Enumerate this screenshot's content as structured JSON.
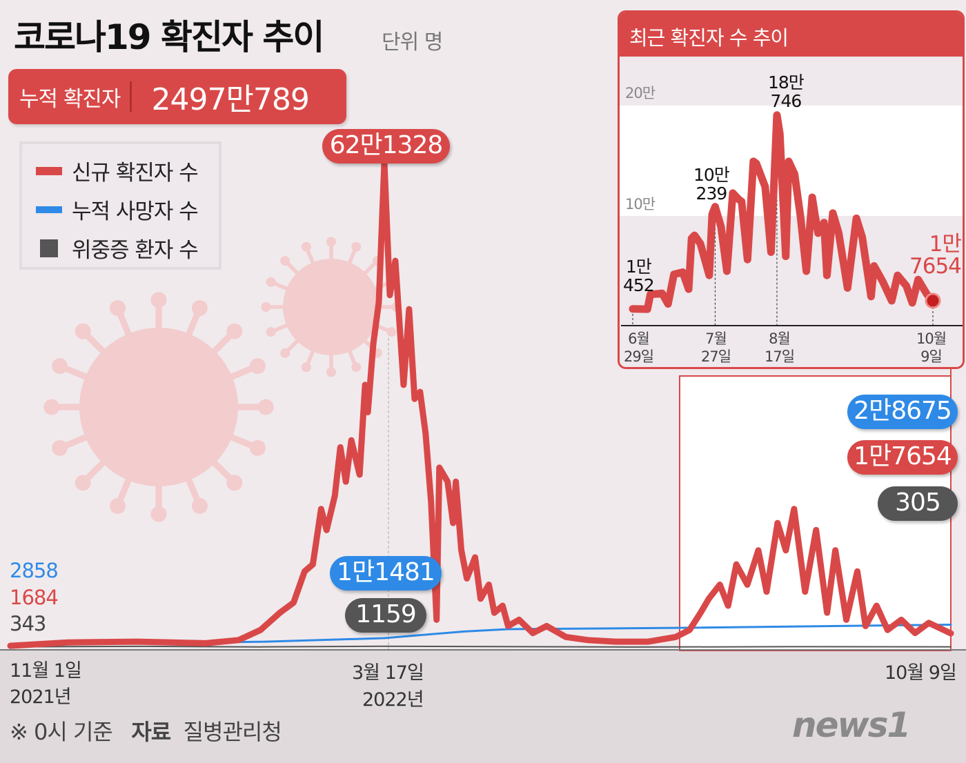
{
  "title": "코로나19 확진자 추이",
  "unit": "단위 명",
  "total": {
    "label": "누적 확진자",
    "value": "2497만789"
  },
  "legend": [
    {
      "label": "신규 확진자 수",
      "color": "#d94848"
    },
    {
      "label": "누적 사망자 수",
      "color": "#2e8ae6"
    },
    {
      "label": "위중증 환자 수",
      "color": "#555555"
    }
  ],
  "colors": {
    "new_cases": "#d94848",
    "deaths": "#2e8ae6",
    "critical": "#555555",
    "background": "#f0eaed"
  },
  "annotations": {
    "peak": "62만1328",
    "deaths_mid": "1만1481",
    "critical_mid": "1159",
    "start_deaths": "2858",
    "start_cases": "1684",
    "start_critical": "343",
    "end_deaths": "2만8675",
    "end_cases": "1만7654",
    "end_critical": "305"
  },
  "x_ticks": [
    {
      "month": "11월 1일",
      "year": "2021년"
    },
    {
      "month": "3월 17일",
      "year": "2022년"
    },
    {
      "month": "10월 9일",
      "year": ""
    }
  ],
  "footer": {
    "note": "※ 0시 기준",
    "source_label": "자료",
    "source": "질병관리청"
  },
  "logo": "news1",
  "chart_data": [
    {
      "type": "line",
      "x_range": [
        "2021-11-01",
        "2022-10-09"
      ],
      "grid": false,
      "legend_position": "top-left",
      "series": [
        {
          "name": "신규 확진자 수",
          "points": [
            [
              "2021-11-01",
              1684
            ],
            [
              "2021-11-22",
              6000
            ],
            [
              "2021-12-17",
              7000
            ],
            [
              "2022-01-11",
              5000
            ],
            [
              "2022-01-23",
              9000
            ],
            [
              "2022-01-31",
              22000
            ],
            [
              "2022-02-07",
              44000
            ],
            [
              "2022-02-12",
              57000
            ],
            [
              "2022-02-16",
              97000
            ],
            [
              "2022-02-19",
              106000
            ],
            [
              "2022-02-22",
              177000
            ],
            [
              "2022-02-24",
              150000
            ],
            [
              "2022-02-27",
              194000
            ],
            [
              "2022-03-01",
              256000
            ],
            [
              "2022-03-03",
              212000
            ],
            [
              "2022-03-05",
              265000
            ],
            [
              "2022-03-08",
              221000
            ],
            [
              "2022-03-10",
              336000
            ],
            [
              "2022-03-11",
              301000
            ],
            [
              "2022-03-13",
              389000
            ],
            [
              "2022-03-15",
              442000
            ],
            [
              "2022-03-17",
              621328
            ],
            [
              "2022-03-19",
              451000
            ],
            [
              "2022-03-21",
              495000
            ],
            [
              "2022-03-24",
              336000
            ],
            [
              "2022-03-26",
              433000
            ],
            [
              "2022-03-28",
              318000
            ],
            [
              "2022-03-30",
              327000
            ],
            [
              "2022-04-01",
              274000
            ],
            [
              "2022-04-03",
              186000
            ],
            [
              "2022-04-05",
              35000
            ],
            [
              "2022-04-06",
              230000
            ],
            [
              "2022-04-09",
              212000
            ],
            [
              "2022-04-11",
              159000
            ],
            [
              "2022-04-12",
              212000
            ],
            [
              "2022-04-14",
              124000
            ],
            [
              "2022-04-16",
              88000
            ],
            [
              "2022-04-19",
              115000
            ],
            [
              "2022-04-21",
              62000
            ],
            [
              "2022-04-24",
              80000
            ],
            [
              "2022-04-26",
              44000
            ],
            [
              "2022-04-29",
              53000
            ],
            [
              "2022-05-01",
              27000
            ],
            [
              "2022-05-05",
              35000
            ],
            [
              "2022-05-10",
              18000
            ],
            [
              "2022-05-15",
              27000
            ],
            [
              "2022-05-22",
              13000
            ],
            [
              "2022-05-30",
              9000
            ],
            [
              "2022-06-09",
              7000
            ],
            [
              "2022-06-21",
              7000
            ],
            [
              "2022-07-01",
              13000
            ],
            [
              "2022-07-06",
              22000
            ],
            [
              "2022-07-10",
              44000
            ],
            [
              "2022-07-13",
              62000
            ],
            [
              "2022-07-17",
              80000
            ],
            [
              "2022-07-20",
              53000
            ],
            [
              "2022-07-23",
              106000
            ],
            [
              "2022-07-27",
              80000
            ],
            [
              "2022-07-31",
              124000
            ],
            [
              "2022-08-03",
              71000
            ],
            [
              "2022-08-07",
              159000
            ],
            [
              "2022-08-10",
              124000
            ],
            [
              "2022-08-13",
              177000
            ],
            [
              "2022-08-17",
              71000
            ],
            [
              "2022-08-21",
              150000
            ],
            [
              "2022-08-25",
              44000
            ],
            [
              "2022-08-28",
              124000
            ],
            [
              "2022-09-01",
              35000
            ],
            [
              "2022-09-05",
              97000
            ],
            [
              "2022-09-08",
              27000
            ],
            [
              "2022-09-12",
              53000
            ],
            [
              "2022-09-16",
              22000
            ],
            [
              "2022-09-21",
              35000
            ],
            [
              "2022-09-26",
              18000
            ],
            [
              "2022-10-01",
              31000
            ],
            [
              "2022-10-09",
              17654
            ]
          ]
        },
        {
          "name": "누적 사망자 수",
          "points": [
            [
              "2021-11-01",
              2858
            ],
            [
              "2022-01-31",
              6800
            ],
            [
              "2022-03-17",
              11481
            ],
            [
              "2022-04-15",
              20000
            ],
            [
              "2022-05-01",
              23000
            ],
            [
              "2022-07-01",
              24600
            ],
            [
              "2022-10-09",
              28675
            ]
          ]
        },
        {
          "name": "위중증 환자 수",
          "points": [
            [
              "2021-11-01",
              343
            ],
            [
              "2021-12-20",
              1000
            ],
            [
              "2022-01-31",
              270
            ],
            [
              "2022-03-17",
              1159
            ],
            [
              "2022-06-15",
              100
            ],
            [
              "2022-08-20",
              560
            ],
            [
              "2022-10-09",
              305
            ]
          ]
        }
      ]
    },
    {
      "type": "line",
      "title": "최근 확진자 수 추이",
      "y_ticks": [
        "20만",
        "10만"
      ],
      "x_ticks": [
        [
          "6월",
          "29일"
        ],
        [
          "7월",
          "27일"
        ],
        [
          "8월",
          "17일"
        ],
        [
          "10월",
          "9일"
        ]
      ],
      "labels": [
        {
          "date": "2022-06-29",
          "text": [
            "1만",
            "452"
          ]
        },
        {
          "date": "2022-07-27",
          "text": [
            "10만",
            "239"
          ]
        },
        {
          "date": "2022-08-17",
          "text": [
            "18만",
            "746"
          ]
        },
        {
          "date": "2022-10-09",
          "text": [
            "1만",
            "7654"
          ]
        }
      ],
      "series": [
        {
          "name": "신규 확진자 수",
          "points": [
            [
              "2022-06-29",
              10452
            ],
            [
              "2022-07-04",
              10200
            ],
            [
              "2022-07-05",
              23200
            ],
            [
              "2022-07-09",
              24100
            ],
            [
              "2022-07-11",
              14800
            ],
            [
              "2022-07-13",
              40800
            ],
            [
              "2022-07-16",
              42700
            ],
            [
              "2022-07-18",
              27800
            ],
            [
              "2022-07-19",
              72400
            ],
            [
              "2022-07-20",
              75100
            ],
            [
              "2022-07-22",
              67700
            ],
            [
              "2022-07-25",
              39900
            ],
            [
              "2022-07-26",
              93700
            ],
            [
              "2022-07-27",
              100239
            ],
            [
              "2022-07-29",
              82600
            ],
            [
              "2022-07-31",
              43600
            ],
            [
              "2022-08-02",
              112200
            ],
            [
              "2022-08-04",
              106700
            ],
            [
              "2022-08-05",
              104800
            ],
            [
              "2022-08-07",
              53800
            ],
            [
              "2022-08-09",
              140100
            ],
            [
              "2022-08-10",
              138200
            ],
            [
              "2022-08-13",
              117800
            ],
            [
              "2022-08-15",
              60300
            ],
            [
              "2022-08-17",
              180746
            ],
            [
              "2022-08-18",
              164200
            ],
            [
              "2022-08-20",
              56600
            ],
            [
              "2022-08-21",
              140100
            ],
            [
              "2022-08-23",
              128900
            ],
            [
              "2022-08-25",
              91800
            ],
            [
              "2022-08-27",
              43600
            ],
            [
              "2022-08-29",
              108500
            ],
            [
              "2022-08-30",
              91800
            ],
            [
              "2022-08-31",
              77000
            ],
            [
              "2022-09-02",
              86300
            ],
            [
              "2022-09-03",
              39900
            ],
            [
              "2022-09-05",
              94600
            ],
            [
              "2022-09-07",
              77000
            ],
            [
              "2022-09-10",
              28800
            ],
            [
              "2022-09-13",
              90000
            ],
            [
              "2022-09-15",
              73300
            ],
            [
              "2022-09-18",
              21300
            ],
            [
              "2022-09-19",
              48200
            ],
            [
              "2022-09-22",
              34300
            ],
            [
              "2022-09-25",
              17600
            ],
            [
              "2022-09-27",
              39900
            ],
            [
              "2022-09-30",
              30600
            ],
            [
              "2022-10-02",
              15800
            ],
            [
              "2022-10-04",
              36200
            ],
            [
              "2022-10-07",
              23200
            ],
            [
              "2022-10-09",
              17654
            ]
          ]
        }
      ]
    }
  ]
}
